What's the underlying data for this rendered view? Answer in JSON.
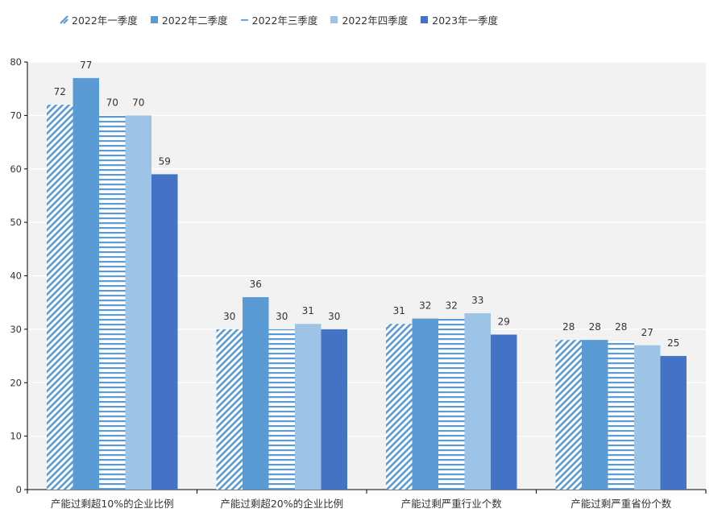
{
  "chart_data": {
    "type": "bar",
    "categories": [
      "产能过剩超10%的企业比例",
      "产能过剩超20%的企业比例",
      "产能过剩严重行业个数",
      "产能过剩严重省份个数"
    ],
    "series": [
      {
        "name": "2022年一季度",
        "values": [
          72,
          30,
          31,
          28
        ],
        "color": "#5b9bd5",
        "pattern": "diagonal-stripes"
      },
      {
        "name": "2022年二季度",
        "values": [
          77,
          36,
          32,
          28
        ],
        "color": "#5b9bd5",
        "pattern": "solid"
      },
      {
        "name": "2022年三季度",
        "values": [
          70,
          30,
          32,
          28
        ],
        "color": "#5b9bd5",
        "pattern": "horizontal-stripes"
      },
      {
        "name": "2022年四季度",
        "values": [
          70,
          31,
          33,
          27
        ],
        "color": "#9dc3e6",
        "pattern": "solid"
      },
      {
        "name": "2023年一季度",
        "values": [
          59,
          30,
          29,
          25
        ],
        "color": "#4472c4",
        "pattern": "solid"
      }
    ],
    "data_labels": [
      [
        "72",
        "30",
        "31",
        "28"
      ],
      [
        "77",
        "36",
        "32",
        "28"
      ],
      [
        "70",
        "30",
        "32",
        "28"
      ],
      [
        "70",
        "31",
        "33",
        "27"
      ],
      [
        "59",
        "30",
        "29",
        "25"
      ]
    ],
    "ylim": [
      0,
      80
    ],
    "yticks": [
      0,
      10,
      20,
      30,
      40,
      50,
      60,
      70,
      80
    ],
    "grid": true,
    "legend_position": "top-left",
    "plot_background": "#f2f2f2"
  }
}
